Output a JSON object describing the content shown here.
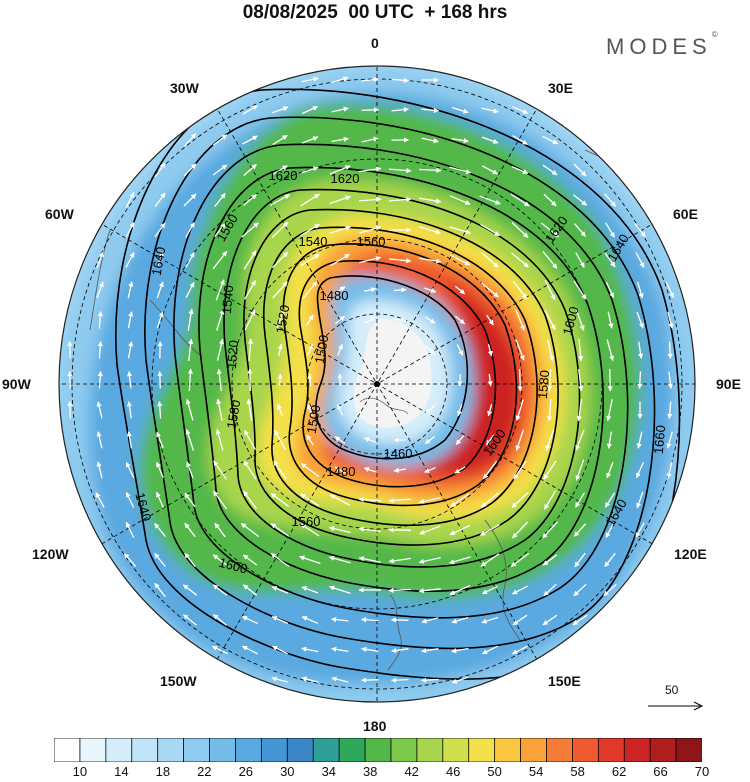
{
  "title": "08/08/2025  00 UTC  + 168 hrs",
  "brand": {
    "name": "MODES",
    "mark": "©"
  },
  "longitude_labels": {
    "n": "0",
    "ne30": "30E",
    "ne60": "60E",
    "e90": "90E",
    "se120": "120E",
    "se150": "150E",
    "s180": "180",
    "sw150": "150W",
    "sw120": "120W",
    "w90": "90W",
    "nw60": "60W",
    "nw30": "30W"
  },
  "contour_labels": [
    "1480",
    "1460",
    "1480",
    "1500",
    "1520",
    "1540",
    "1560",
    "1580",
    "1600",
    "1620",
    "1640",
    "1660",
    "1640",
    "1620",
    "1640",
    "1560",
    "1540",
    "1500",
    "1520",
    "1580",
    "1600",
    "1620",
    "1640",
    "1560",
    "1600"
  ],
  "contour_levels": [
    1460,
    1480,
    1500,
    1520,
    1540,
    1560,
    1580,
    1600,
    1620,
    1640,
    1660
  ],
  "reference_vector": {
    "value": "50",
    "direction": "east"
  },
  "colorbar": {
    "ticks": [
      "10",
      "14",
      "18",
      "22",
      "26",
      "30",
      "34",
      "38",
      "42",
      "46",
      "50",
      "54",
      "58",
      "62",
      "66",
      "70"
    ],
    "colors": [
      "#ffffff",
      "#eaf6fd",
      "#d6eefb",
      "#c0e4f8",
      "#a8d8f4",
      "#8ecbef",
      "#74bde9",
      "#5aa9e0",
      "#4495d4",
      "#3a86c6",
      "#2ea098",
      "#2fa85a",
      "#52b848",
      "#7cc84a",
      "#a8d54c",
      "#d0df4e",
      "#f4e04a",
      "#fbc640",
      "#f9a23a",
      "#f57c34",
      "#ef5a2e",
      "#e23a2a",
      "#cc2424",
      "#b01d1d",
      "#8f1616"
    ]
  },
  "colors": {
    "pole_region": "#f4f4f4",
    "arrows": "#ffffff",
    "contours": "#000000"
  }
}
